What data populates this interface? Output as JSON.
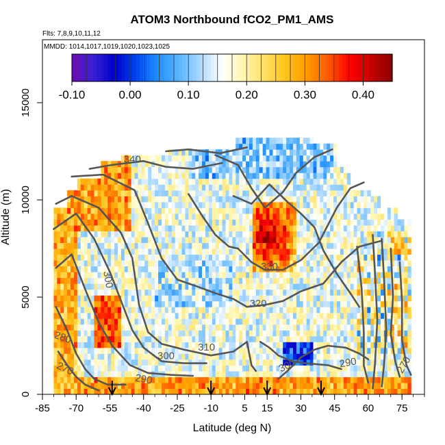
{
  "chart_data": {
    "type": "heatmap",
    "title": "ATOM3 Northbound fCO2_PM1_AMS",
    "flights_text": "Flts: 7,8,9,10,11,12",
    "dates_text": "MMDD: 1014,1017,1019,1020,1023,1025",
    "xlabel": "Latitude (deg N)",
    "ylabel": "Altitude (m)",
    "xlim": [
      -85,
      85
    ],
    "ylim": [
      0,
      17500
    ],
    "x_ticks": [
      "-85",
      "-70",
      "-55",
      "-40",
      "-25",
      "-10",
      "5",
      "15",
      "30",
      "45",
      "60",
      "75"
    ],
    "x_tick_values": [
      -85,
      -70,
      -55,
      -40,
      -25,
      -10,
      5,
      15,
      30,
      45,
      60,
      75
    ],
    "y_ticks": [
      "0",
      "5000",
      "10000",
      "15000"
    ],
    "y_tick_values": [
      0,
      5000,
      10000,
      15000
    ],
    "colorbar": {
      "range": [
        -0.1,
        0.45
      ],
      "tick_labels": [
        "-0.10",
        "0.00",
        "0.10",
        "0.20",
        "0.30",
        "0.40"
      ],
      "tick_values": [
        -0.1,
        0.0,
        0.1,
        0.2,
        0.3,
        0.4
      ],
      "colors": [
        "#6a0dad",
        "#3a1fd6",
        "#0000c8",
        "#0044ee",
        "#1e90ff",
        "#5ab4ff",
        "#a8d8ff",
        "#ffffff",
        "#fff6b0",
        "#ffe066",
        "#ffc21a",
        "#ff9a00",
        "#ff5a00",
        "#ff0000",
        "#c80000",
        "#8b0000"
      ]
    },
    "contour_labels": [
      {
        "text": "340",
        "lat": -45,
        "alt": 12050
      },
      {
        "text": "330",
        "lat": 16,
        "alt": 6550
      },
      {
        "text": "320",
        "lat": 11,
        "alt": 4650
      },
      {
        "text": "310",
        "lat": -12,
        "alt": 2400
      },
      {
        "text": "300",
        "lat": -30,
        "alt": 1950
      },
      {
        "text": "300",
        "lat": -56,
        "alt": 5900
      },
      {
        "text": "300",
        "lat": 24,
        "alt": 1450
      },
      {
        "text": "290",
        "lat": -40,
        "alt": 750
      },
      {
        "text": "290",
        "lat": 51,
        "alt": 1600
      },
      {
        "text": "280",
        "lat": -76,
        "alt": 2900
      },
      {
        "text": "270",
        "lat": -75,
        "alt": 1300
      },
      {
        "text": "270",
        "lat": 76,
        "alt": 1500
      }
    ],
    "arrow_latitudes": [
      -54,
      -10,
      15,
      39
    ]
  }
}
